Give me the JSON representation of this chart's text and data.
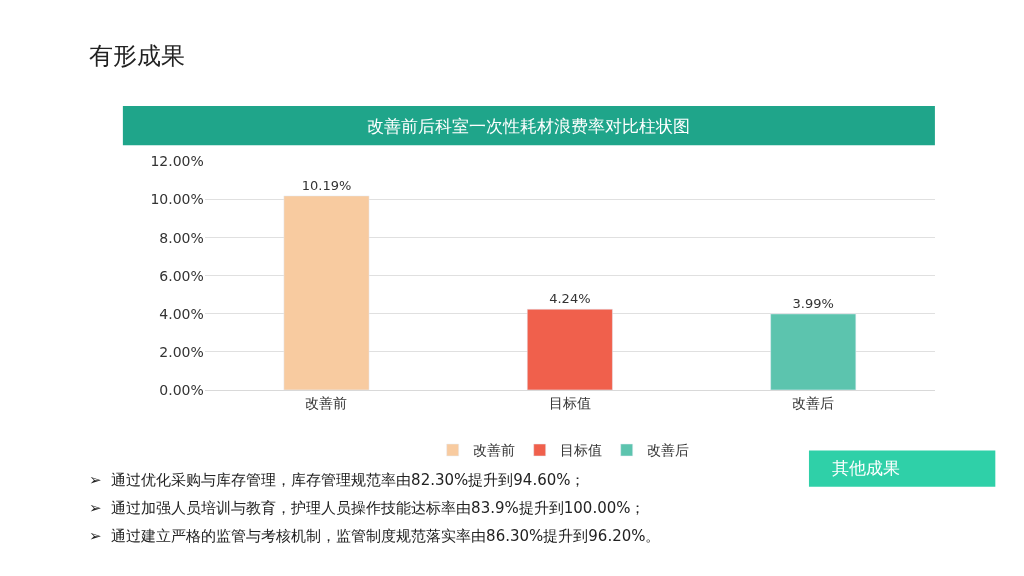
{
  "chart_data": {
    "type": "bar",
    "title": "改善前后科室一次性耗材浪费率对比柱状图",
    "categories": [
      "改善前",
      "目标值",
      "改善后"
    ],
    "series": [
      {
        "name": "改善前",
        "color": "#f8cba0",
        "values": [
          10.19,
          null,
          null
        ],
        "value_labels": [
          "10.19%",
          null,
          null
        ]
      },
      {
        "name": "目标值",
        "color": "#f0604c",
        "values": [
          null,
          4.24,
          null
        ],
        "value_labels": [
          null,
          "4.24%",
          null
        ]
      },
      {
        "name": "改善后",
        "color": "#5cc4ae",
        "values": [
          null,
          null,
          3.99
        ],
        "value_labels": [
          null,
          null,
          "3.99%"
        ]
      }
    ],
    "ylim": [
      0,
      12
    ],
    "yticks": [
      {
        "value": 0,
        "label": "0.00%"
      },
      {
        "value": 2,
        "label": "2.00%"
      },
      {
        "value": 4,
        "label": "4.00%"
      },
      {
        "value": 6,
        "label": "6.00%"
      },
      {
        "value": 8,
        "label": "8.00%"
      },
      {
        "value": 10,
        "label": "10.00%"
      },
      {
        "value": 12,
        "label": "12.00%"
      }
    ],
    "grid": "y",
    "legend": "bottom",
    "annotations": [
      "有形成果",
      "其他成果",
      "➢  通过优化采购与库存管理，库存管理规范率由82.30%提升到94.60%；",
      "➢  通过加强人员培训与教育，护理人员操作技能达标率由83.9%提升到100.00%；",
      "➢  通过建立严格的监管与考核机制，监管制度规范落实率由86.30%提升到96.20%。"
    ]
  }
}
